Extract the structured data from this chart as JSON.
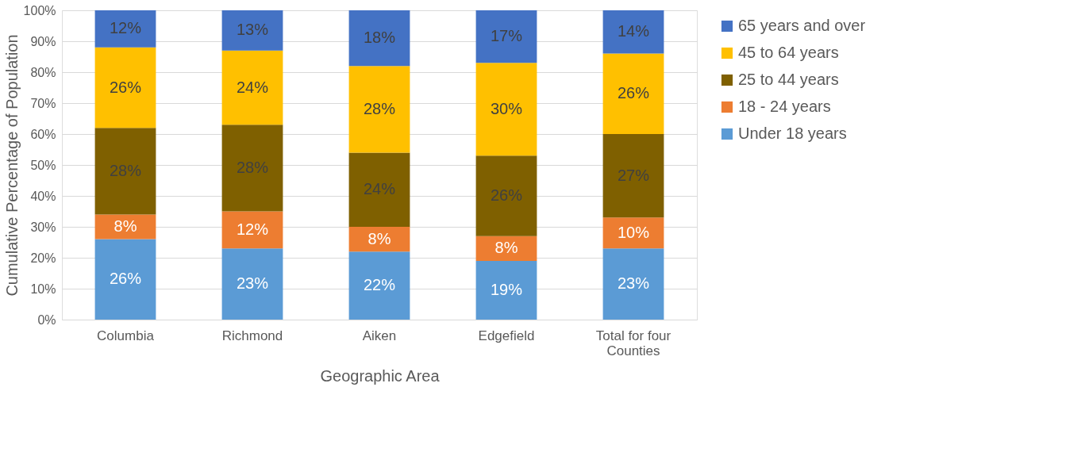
{
  "chart_data": {
    "type": "bar",
    "stacked": true,
    "xlabel": "Geographic Area",
    "ylabel": "Cumulative Percentage of Population",
    "categories": [
      "Columbia",
      "Richmond",
      "Aiken",
      "Edgefield",
      "Total for four Counties"
    ],
    "series": [
      {
        "name": "Under 18 years",
        "color": "#5b9bd5",
        "values": [
          26,
          23,
          22,
          19,
          23
        ],
        "value_labels": [
          "26%",
          "23%",
          "22%",
          "19%",
          "23%"
        ]
      },
      {
        "name": "18 - 24 years",
        "color": "#ed7d31",
        "values": [
          8,
          12,
          8,
          8,
          10
        ],
        "value_labels": [
          "8%",
          "12%",
          "8%",
          "8%",
          "10%"
        ]
      },
      {
        "name": "25 to 44 years",
        "color": "#7f6000",
        "values": [
          28,
          28,
          24,
          26,
          27
        ],
        "value_labels": [
          "28%",
          "28%",
          "24%",
          "26%",
          "27%"
        ]
      },
      {
        "name": "45 to 64 years",
        "color": "#ffc000",
        "values": [
          26,
          24,
          28,
          30,
          26
        ],
        "value_labels": [
          "26%",
          "24%",
          "28%",
          "30%",
          "26%"
        ]
      },
      {
        "name": "65 years and over",
        "color": "#4472c4",
        "values": [
          12,
          13,
          18,
          17,
          14
        ],
        "value_labels": [
          "12%",
          "13%",
          "18%",
          "17%",
          "14%"
        ]
      }
    ],
    "ylim": [
      0,
      100
    ],
    "yticks": [
      {
        "value": 0,
        "label": "0%"
      },
      {
        "value": 10,
        "label": "10%"
      },
      {
        "value": 20,
        "label": "20%"
      },
      {
        "value": 30,
        "label": "30%"
      },
      {
        "value": 40,
        "label": "40%"
      },
      {
        "value": 50,
        "label": "50%"
      },
      {
        "value": 60,
        "label": "60%"
      },
      {
        "value": 70,
        "label": "70%"
      },
      {
        "value": 80,
        "label": "80%"
      },
      {
        "value": 90,
        "label": "90%"
      },
      {
        "value": 100,
        "label": "100%"
      }
    ],
    "grid": "y",
    "legend": "right"
  }
}
